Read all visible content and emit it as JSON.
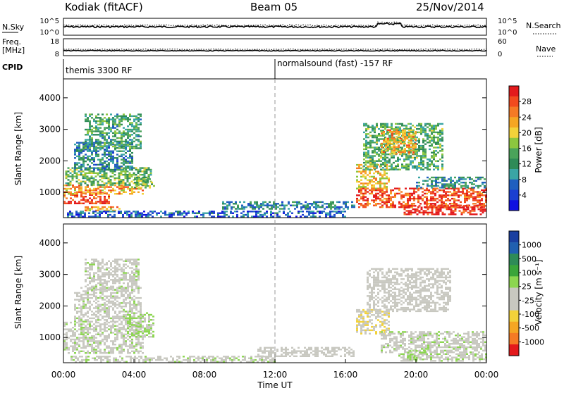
{
  "header": {
    "station": "Kodiak (fitACF)",
    "beam": "Beam 05",
    "date": "25/Nov/2014"
  },
  "panels": {
    "nsky": {
      "left_label": "N.Sky",
      "left_ticks": [
        "10^5",
        "10^0"
      ],
      "right_ticks": [
        "10^5",
        "10^0"
      ],
      "right_label": "N.Search"
    },
    "freq": {
      "left_label_1": "Freq.",
      "left_label_2": "[MHz]",
      "left_ticks": [
        "18",
        "8"
      ],
      "right_ticks": [
        "60",
        "0"
      ],
      "right_label": "Nave"
    },
    "cpid": {
      "label": "CPID",
      "segments": [
        "themis 3300 RF",
        "normalsound (fast) -157 RF"
      ]
    }
  },
  "chart_data": [
    {
      "type": "heatmap",
      "name": "power",
      "ylabel": "Slant Range [km]",
      "yticks": [
        1000,
        2000,
        3000,
        4000
      ],
      "ylim": [
        200,
        4600
      ],
      "xlim": [
        0,
        24
      ],
      "colorbar": {
        "label": "Power [dB]",
        "ticks": [
          "28",
          "24",
          "20",
          "16",
          "12",
          "8",
          "4"
        ],
        "colors": [
          "#e31a1c",
          "#f24a1e",
          "#f57a25",
          "#f5a623",
          "#f2d23a",
          "#8cc63f",
          "#4aa35a",
          "#2e8b57",
          "#3aa5a5",
          "#1f5fbf",
          "#1a3fd0",
          "#1010e0"
        ],
        "range": [
          0,
          30
        ]
      },
      "blobs": [
        {
          "t0": 0.0,
          "t1": 2.6,
          "r0": 600,
          "r1": 1000,
          "v": 27
        },
        {
          "t0": 0.0,
          "t1": 4.6,
          "r0": 950,
          "r1": 1250,
          "v": 22
        },
        {
          "t0": 0.1,
          "t1": 5.0,
          "r0": 1200,
          "r1": 1800,
          "v": 14
        },
        {
          "t0": 0.6,
          "t1": 4.0,
          "r0": 1700,
          "r1": 2600,
          "v": 9
        },
        {
          "t0": 1.2,
          "t1": 4.5,
          "r0": 2400,
          "r1": 3500,
          "v": 12
        },
        {
          "t0": 1.2,
          "t1": 3.2,
          "r0": 380,
          "r1": 560,
          "v": 22
        },
        {
          "t0": 4.0,
          "t1": 5.2,
          "r0": 1100,
          "r1": 1500,
          "v": 15
        },
        {
          "t0": 0.2,
          "t1": 16.0,
          "r0": 230,
          "r1": 420,
          "v": 6
        },
        {
          "t0": 9.0,
          "t1": 16.5,
          "r0": 430,
          "r1": 720,
          "v": 9
        },
        {
          "t0": 16.6,
          "t1": 24.0,
          "r0": 500,
          "r1": 1150,
          "v": 26
        },
        {
          "t0": 19.3,
          "t1": 24.0,
          "r0": 260,
          "r1": 600,
          "v": 29
        },
        {
          "t0": 16.6,
          "t1": 18.5,
          "r0": 1100,
          "r1": 1900,
          "v": 20
        },
        {
          "t0": 17.0,
          "t1": 21.5,
          "r0": 1700,
          "r1": 3200,
          "v": 13
        },
        {
          "t0": 18.0,
          "t1": 20.0,
          "r0": 2200,
          "r1": 3000,
          "v": 21
        },
        {
          "t0": 20.0,
          "t1": 24.0,
          "r0": 1100,
          "r1": 1500,
          "v": 10
        }
      ]
    },
    {
      "type": "heatmap",
      "name": "velocity",
      "ylabel": "Slant Range [km]",
      "yticks": [
        1000,
        2000,
        3000,
        4000
      ],
      "ylim": [
        200,
        4600
      ],
      "xlim": [
        0,
        24
      ],
      "colorbar": {
        "label": "Velocity [m s⁻¹]",
        "ticks": [
          "1000",
          "500",
          "100",
          "25",
          "-25",
          "-100",
          "-500",
          "-1000"
        ],
        "colors": [
          "#e31a1c",
          "#f57a25",
          "#f5a623",
          "#f2d23a",
          "#c8c8c0",
          "#c8c8c0",
          "#8cd650",
          "#3aa53a",
          "#2e8b57",
          "#2060b0",
          "#1a3fa0"
        ],
        "range": [
          -1200,
          1200
        ]
      },
      "blobs": [
        {
          "t0": 0.0,
          "t1": 4.5,
          "r0": 500,
          "r1": 1500,
          "v": 0
        },
        {
          "t0": 0.6,
          "t1": 4.4,
          "r0": 1500,
          "r1": 2600,
          "v": 0
        },
        {
          "t0": 1.2,
          "t1": 4.3,
          "r0": 2500,
          "r1": 3500,
          "v": -10
        },
        {
          "t0": 3.6,
          "t1": 5.2,
          "r0": 1000,
          "r1": 1800,
          "v": 150
        },
        {
          "t0": 0.4,
          "t1": 12.0,
          "r0": 230,
          "r1": 420,
          "v": 0
        },
        {
          "t0": 11.0,
          "t1": 16.5,
          "r0": 400,
          "r1": 700,
          "v": -150
        },
        {
          "t0": 16.6,
          "t1": 18.5,
          "r0": 1100,
          "r1": 1900,
          "v": -300
        },
        {
          "t0": 17.2,
          "t1": 22.0,
          "r0": 1800,
          "r1": 3200,
          "v": -60
        },
        {
          "t0": 18.0,
          "t1": 24.0,
          "r0": 500,
          "r1": 1200,
          "v": 0
        },
        {
          "t0": 19.0,
          "t1": 24.0,
          "r0": 250,
          "r1": 500,
          "v": 40
        },
        {
          "t0": 19.5,
          "t1": 20.6,
          "r0": 300,
          "r1": 600,
          "v": 180
        }
      ]
    }
  ],
  "xaxis": {
    "ticks": [
      "00:00",
      "04:00",
      "08:00",
      "12:00",
      "16:00",
      "20:00",
      "00:00"
    ],
    "label": "Time UT"
  }
}
